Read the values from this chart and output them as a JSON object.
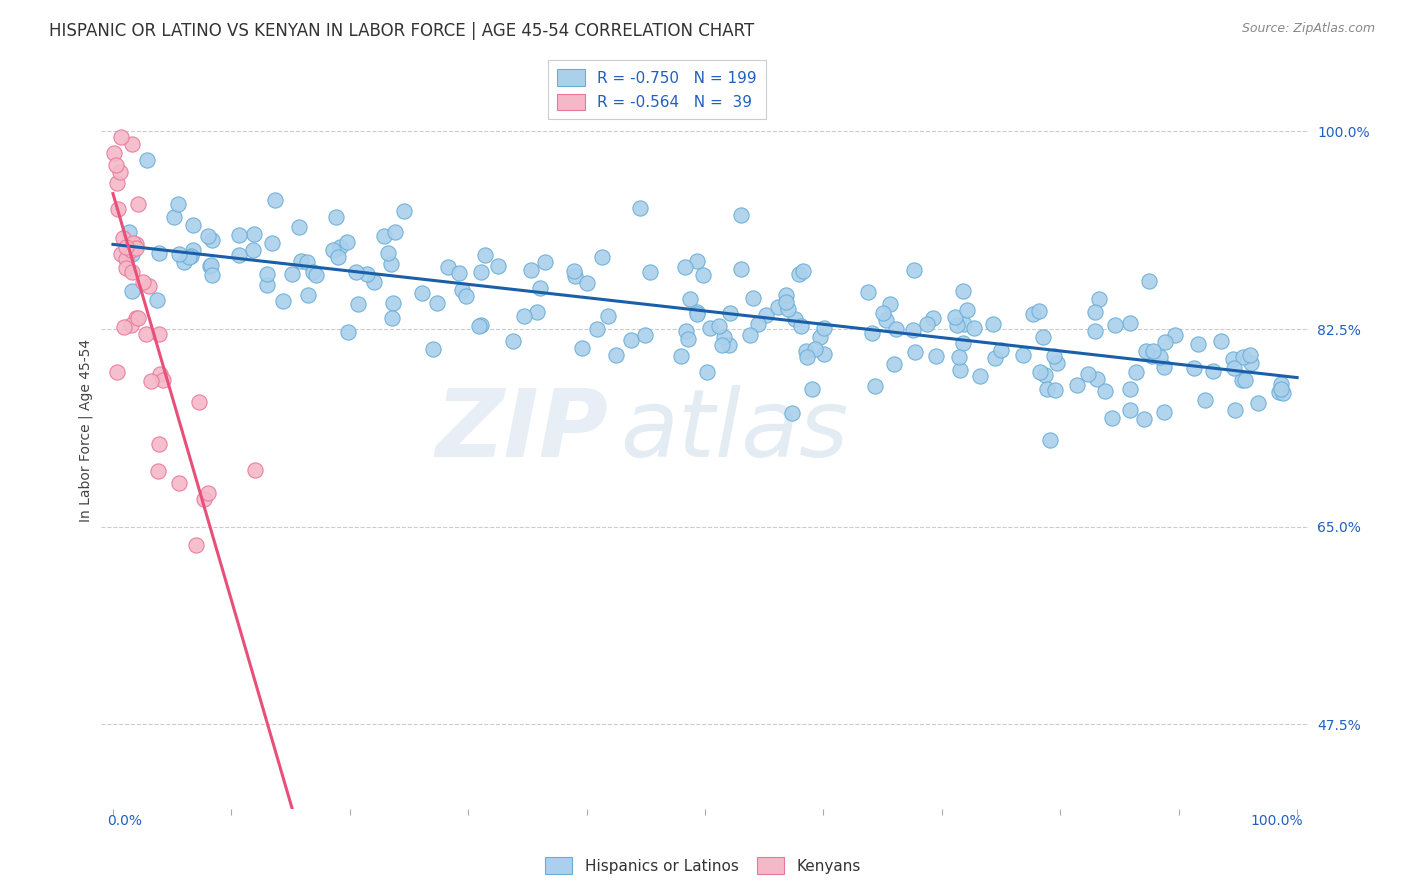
{
  "title": "HISPANIC OR LATINO VS KENYAN IN LABOR FORCE | AGE 45-54 CORRELATION CHART",
  "source": "Source: ZipAtlas.com",
  "ylabel": "In Labor Force | Age 45-54",
  "ytick_labels": [
    "47.5%",
    "65.0%",
    "82.5%",
    "100.0%"
  ],
  "ytick_values": [
    0.475,
    0.65,
    0.825,
    1.0
  ],
  "xlim": [
    -0.01,
    1.01
  ],
  "ylim": [
    0.4,
    1.07
  ],
  "blue_R": -0.75,
  "blue_N": 199,
  "pink_R": -0.564,
  "pink_N": 39,
  "blue_scatter_color": "#aad0ec",
  "blue_scatter_edge": "#6aaed6",
  "pink_scatter_color": "#f4b8c8",
  "pink_scatter_edge": "#e8789a",
  "blue_line_color": "#1a5fa8",
  "pink_line_color": "#e8507a",
  "pink_dashed_color": "#d8b0c0",
  "label_color": "#2060c0",
  "legend_label_blue": "Hispanics or Latinos",
  "legend_label_pink": "Kenyans",
  "title_fontsize": 12,
  "axis_label_fontsize": 10,
  "tick_fontsize": 10,
  "legend_fontsize": 11,
  "source_fontsize": 9,
  "blue_intercept": 0.9,
  "blue_slope": -0.118,
  "pink_intercept": 0.945,
  "pink_slope": -3.6,
  "blue_noise": 0.028,
  "pink_noise": 0.045
}
